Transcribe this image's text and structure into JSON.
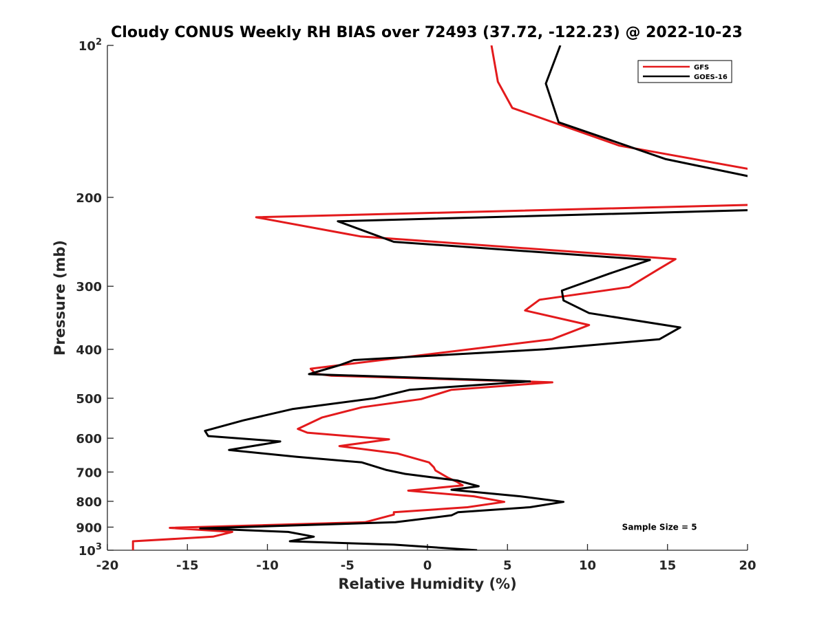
{
  "chart_data": {
    "type": "line",
    "orientation": "vertical-profile",
    "title": "Cloudy CONUS Weekly RH BIAS over 72493 (37.72, -122.23) @ 2022-10-23",
    "xlabel": "Relative Humidity (%)",
    "ylabel": "Pressure (mb)",
    "xlim": [
      -20,
      20
    ],
    "ylim": [
      100,
      1000
    ],
    "y_scale": "log",
    "y_reversed": true,
    "grid": false,
    "legend_position": "top-right",
    "x_ticks": [
      {
        "value": -20,
        "label": "-20"
      },
      {
        "value": -15,
        "label": "-15"
      },
      {
        "value": -10,
        "label": "-10"
      },
      {
        "value": -5,
        "label": "-5"
      },
      {
        "value": 0,
        "label": "0"
      },
      {
        "value": 5,
        "label": "5"
      },
      {
        "value": 10,
        "label": "10"
      },
      {
        "value": 15,
        "label": "15"
      },
      {
        "value": 20,
        "label": "20"
      }
    ],
    "y_ticks": [
      {
        "value": 100,
        "base": "10",
        "exp": "2"
      },
      {
        "value": 200,
        "base": "200",
        "exp": ""
      },
      {
        "value": 300,
        "base": "300",
        "exp": ""
      },
      {
        "value": 400,
        "base": "400",
        "exp": ""
      },
      {
        "value": 500,
        "base": "500",
        "exp": ""
      },
      {
        "value": 600,
        "base": "600",
        "exp": ""
      },
      {
        "value": 700,
        "base": "700",
        "exp": ""
      },
      {
        "value": 800,
        "base": "800",
        "exp": ""
      },
      {
        "value": 900,
        "base": "900",
        "exp": ""
      },
      {
        "value": 1000,
        "base": "10",
        "exp": "3"
      }
    ],
    "series": [
      {
        "name": "GFS",
        "color": "#e31a1c",
        "points": [
          [
            4.0,
            100
          ],
          [
            4.4,
            118
          ],
          [
            5.3,
            133
          ],
          [
            12.0,
            158
          ],
          [
            20.2,
            176
          ],
          [
            20.2,
            207
          ],
          [
            -10.7,
            219
          ],
          [
            -4.2,
            239
          ],
          [
            15.5,
            265
          ],
          [
            14.4,
            278
          ],
          [
            12.6,
            301
          ],
          [
            7.0,
            319
          ],
          [
            6.1,
            335
          ],
          [
            10.1,
            358
          ],
          [
            7.8,
            382
          ],
          [
            -7.3,
            437
          ],
          [
            -7.0,
            447
          ],
          [
            -6.0,
            451
          ],
          [
            7.8,
            465
          ],
          [
            1.5,
            481
          ],
          [
            -0.4,
            502
          ],
          [
            -4.1,
            521
          ],
          [
            -6.6,
            546
          ],
          [
            -8.1,
            575
          ],
          [
            -7.5,
            585
          ],
          [
            -2.4,
            603
          ],
          [
            -5.5,
            622
          ],
          [
            -1.9,
            643
          ],
          [
            0.1,
            670
          ],
          [
            0.4,
            685
          ],
          [
            0.5,
            695
          ],
          [
            1.3,
            719
          ],
          [
            1.8,
            731
          ],
          [
            2.2,
            744
          ],
          [
            -1.2,
            762
          ],
          [
            2.9,
            782
          ],
          [
            4.8,
            802
          ],
          [
            2.5,
            822
          ],
          [
            -2.1,
            841
          ],
          [
            -2.1,
            850
          ],
          [
            -3.9,
            880
          ],
          [
            -16.1,
            903
          ],
          [
            -12.2,
            920
          ],
          [
            -13.4,
            940
          ],
          [
            -18.4,
            960
          ],
          [
            -18.4,
            1000
          ]
        ]
      },
      {
        "name": "GOES-16",
        "color": "#000000",
        "points": [
          [
            8.3,
            100
          ],
          [
            7.4,
            119
          ],
          [
            8.2,
            142
          ],
          [
            14.9,
            168
          ],
          [
            20.2,
            182
          ],
          [
            20.2,
            212
          ],
          [
            -5.6,
            223
          ],
          [
            -2.1,
            245
          ],
          [
            13.9,
            266
          ],
          [
            11.4,
            283
          ],
          [
            8.4,
            306
          ],
          [
            8.5,
            320
          ],
          [
            10.1,
            339
          ],
          [
            15.8,
            362
          ],
          [
            14.5,
            382
          ],
          [
            7.3,
            400
          ],
          [
            -4.6,
            420
          ],
          [
            -5.5,
            430
          ],
          [
            -7.4,
            448
          ],
          [
            6.4,
            463
          ],
          [
            -1.1,
            481
          ],
          [
            -3.3,
            500
          ],
          [
            -8.4,
            525
          ],
          [
            -11.5,
            553
          ],
          [
            -13.9,
            580
          ],
          [
            -13.7,
            594
          ],
          [
            -9.2,
            609
          ],
          [
            -12.4,
            633
          ],
          [
            -8.2,
            653
          ],
          [
            -4.1,
            670
          ],
          [
            -2.6,
            693
          ],
          [
            -1.4,
            706
          ],
          [
            1.9,
            728
          ],
          [
            3.2,
            747
          ],
          [
            1.5,
            759
          ],
          [
            5.8,
            782
          ],
          [
            8.5,
            802
          ],
          [
            6.4,
            822
          ],
          [
            1.9,
            841
          ],
          [
            1.5,
            853
          ],
          [
            -2.0,
            880
          ],
          [
            -14.2,
            905
          ],
          [
            -8.7,
            920
          ],
          [
            -7.1,
            940
          ],
          [
            -8.6,
            960
          ],
          [
            -2.1,
            975
          ],
          [
            3.1,
            1000
          ]
        ]
      }
    ],
    "annotations": [
      {
        "text": "Sample Size = 5",
        "x": 14.5,
        "y": 912
      }
    ]
  }
}
